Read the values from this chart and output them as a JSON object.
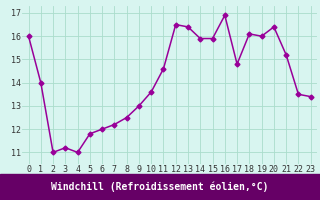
{
  "x": [
    0,
    1,
    2,
    3,
    4,
    5,
    6,
    7,
    8,
    9,
    10,
    11,
    12,
    13,
    14,
    15,
    16,
    17,
    18,
    19,
    20,
    21,
    22,
    23
  ],
  "y": [
    16.0,
    14.0,
    11.0,
    11.2,
    11.0,
    11.8,
    12.0,
    12.2,
    12.5,
    13.0,
    13.6,
    14.6,
    16.5,
    16.4,
    15.9,
    15.9,
    16.9,
    14.8,
    16.1,
    16.0,
    16.4,
    15.2,
    13.5,
    13.4
  ],
  "xlim": [
    -0.5,
    23.5
  ],
  "ylim": [
    10.5,
    17.3
  ],
  "yticks": [
    11,
    12,
    13,
    14,
    15,
    16,
    17
  ],
  "xticks": [
    0,
    1,
    2,
    3,
    4,
    5,
    6,
    7,
    8,
    9,
    10,
    11,
    12,
    13,
    14,
    15,
    16,
    17,
    18,
    19,
    20,
    21,
    22,
    23
  ],
  "line_color": "#990099",
  "marker": "D",
  "marker_size": 2.5,
  "bg_color": "#d8f5f0",
  "grid_color": "#aaddcc",
  "xlabel": "Windchill (Refroidissement éolien,°C)",
  "xlabel_fontsize": 7.0,
  "tick_fontsize": 6.0,
  "linewidth": 1.1,
  "banner_color": "#660066",
  "banner_text_color": "#ffffff"
}
